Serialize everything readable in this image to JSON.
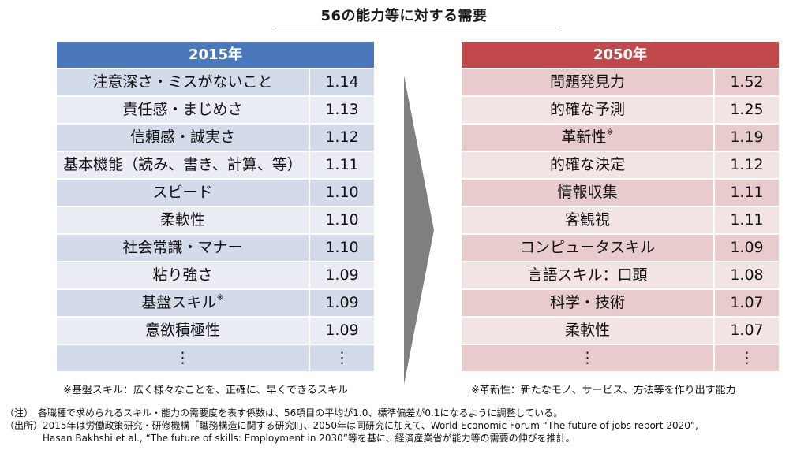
{
  "title": "56の能力等に対する需要",
  "left_table": {
    "header": "2015年",
    "rows": [
      {
        "label": "注意深さ・ミスがないこと",
        "sup": "",
        "value": "1.14"
      },
      {
        "label": "責任感・まじめさ",
        "sup": "",
        "value": "1.13"
      },
      {
        "label": "信頼感・誠実さ",
        "sup": "",
        "value": "1.12"
      },
      {
        "label": "基本機能（読み、書き、計算、等）",
        "sup": "",
        "value": "1.11"
      },
      {
        "label": "スピード",
        "sup": "",
        "value": "1.10"
      },
      {
        "label": "柔軟性",
        "sup": "",
        "value": "1.10"
      },
      {
        "label": "社会常識・マナー",
        "sup": "",
        "value": "1.10"
      },
      {
        "label": "粘り強さ",
        "sup": "",
        "value": "1.09"
      },
      {
        "label": "基盤スキル",
        "sup": "※",
        "value": "1.09"
      },
      {
        "label": "意欲積極性",
        "sup": "",
        "value": "1.09"
      },
      {
        "label": "⋮",
        "sup": "",
        "value": "⋮"
      }
    ],
    "footnote": "※基盤スキル：広く様々なことを、正確に、早くできるスキル"
  },
  "right_table": {
    "header": "2050年",
    "rows": [
      {
        "label": "問題発見力",
        "sup": "",
        "value": "1.52"
      },
      {
        "label": "的確な予測",
        "sup": "",
        "value": "1.25"
      },
      {
        "label": "革新性",
        "sup": "※",
        "value": "1.19"
      },
      {
        "label": "的確な決定",
        "sup": "",
        "value": "1.12"
      },
      {
        "label": "情報収集",
        "sup": "",
        "value": "1.11"
      },
      {
        "label": "客観視",
        "sup": "",
        "value": "1.11"
      },
      {
        "label": "コンピュータスキル",
        "sup": "",
        "value": "1.09"
      },
      {
        "label": "言語スキル：口頭",
        "sup": "",
        "value": "1.08"
      },
      {
        "label": "科学・技術",
        "sup": "",
        "value": "1.07"
      },
      {
        "label": "柔軟性",
        "sup": "",
        "value": "1.07"
      },
      {
        "label": "⋮",
        "sup": "",
        "value": "⋮"
      }
    ],
    "footnote": "※革新性：新たなモノ、サービス、方法等を作り出す能力"
  },
  "notes": {
    "note": "（注）　各職種で求められるスキル・能力の需要度を表す係数は、56項目の平均が1.0、標準偏差が0.1になるように調整している。",
    "source_line1": "（出所）2015年は労働政策研究・研修機構「職務構造に関する研究Ⅱ」、2050年は同研究に加えて、World Economic Forum “The future of jobs report 2020”,",
    "source_line2": "　　　　Hasan Bakhshi et al., “The future of skills: Employment in 2030”等を基に、経済産業省が能力等の需要の伸びを推計。"
  },
  "colors": {
    "left_header": "#4a78bb",
    "right_header": "#c1494b",
    "arrow": "#808080"
  }
}
